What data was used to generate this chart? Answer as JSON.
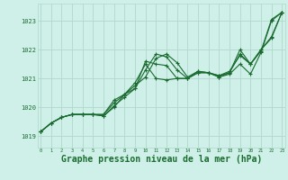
{
  "bg_color": "#cff0e8",
  "grid_color": "#b0d8cc",
  "line_color": "#1a6b30",
  "marker_color": "#1a6b30",
  "xlabel": "Graphe pression niveau de la mer (hPa)",
  "xlabel_fontsize": 7,
  "ylabel_ticks": [
    1019,
    1020,
    1021,
    1022,
    1023
  ],
  "xticks": [
    0,
    1,
    2,
    3,
    4,
    5,
    6,
    7,
    8,
    9,
    10,
    11,
    12,
    13,
    14,
    15,
    16,
    17,
    18,
    19,
    20,
    21,
    22,
    23
  ],
  "ylim": [
    1018.6,
    1023.6
  ],
  "xlim": [
    -0.3,
    23.3
  ],
  "series": [
    [
      1019.15,
      1019.45,
      1019.65,
      1019.75,
      1019.75,
      1019.75,
      1019.75,
      1020.15,
      1020.45,
      1020.75,
      1021.05,
      1021.7,
      1021.85,
      1021.55,
      1021.05,
      1021.25,
      1021.2,
      1021.1,
      1021.2,
      1021.85,
      1021.5,
      1021.95,
      1023.05,
      1023.3
    ],
    [
      1019.15,
      1019.45,
      1019.65,
      1019.75,
      1019.75,
      1019.75,
      1019.75,
      1020.25,
      1020.45,
      1020.65,
      1021.3,
      1021.85,
      1021.75,
      1021.3,
      1021.0,
      1021.2,
      1021.2,
      1021.05,
      1021.15,
      1021.5,
      1021.15,
      1021.9,
      1023.0,
      1023.3
    ],
    [
      1019.15,
      1019.45,
      1019.65,
      1019.75,
      1019.75,
      1019.75,
      1019.7,
      1020.05,
      1020.35,
      1020.65,
      1021.6,
      1021.5,
      1021.45,
      1021.0,
      1021.0,
      1021.2,
      1021.2,
      1021.05,
      1021.2,
      1022.0,
      1021.5,
      1022.0,
      1022.4,
      1023.3
    ],
    [
      1019.15,
      1019.45,
      1019.65,
      1019.75,
      1019.75,
      1019.75,
      1019.7,
      1020.0,
      1020.45,
      1020.85,
      1021.5,
      1021.0,
      1020.95,
      1021.0,
      1021.0,
      1021.25,
      1021.2,
      1021.1,
      1021.25,
      1021.8,
      1021.5,
      1022.0,
      1022.45,
      1023.3
    ]
  ]
}
